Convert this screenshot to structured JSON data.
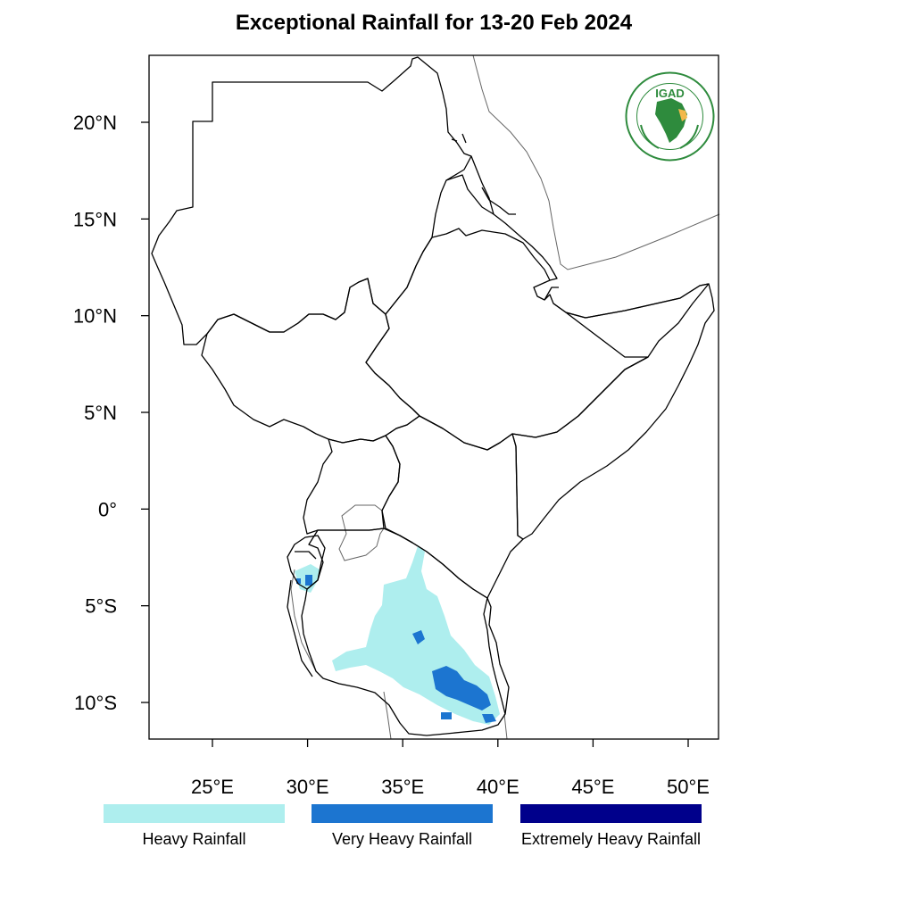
{
  "title": "Exceptional Rainfall for 13-20 Feb 2024",
  "axes": {
    "lat_ticks": [
      {
        "value": 20,
        "label": "20°N"
      },
      {
        "value": 15,
        "label": "15°N"
      },
      {
        "value": 10,
        "label": "10°N"
      },
      {
        "value": 5,
        "label": "5°N"
      },
      {
        "value": 0,
        "label": "0°"
      },
      {
        "value": -5,
        "label": "5°S"
      },
      {
        "value": -10,
        "label": "10°S"
      }
    ],
    "lon_ticks": [
      {
        "value": 25,
        "label": "25°E"
      },
      {
        "value": 30,
        "label": "30°E"
      },
      {
        "value": 35,
        "label": "35°E"
      },
      {
        "value": 40,
        "label": "40°E"
      },
      {
        "value": 45,
        "label": "45°E"
      },
      {
        "value": 50,
        "label": "50°E"
      }
    ]
  },
  "legend": [
    {
      "label": "Heavy Rainfall",
      "color": "#aeeeee"
    },
    {
      "label": "Very Heavy Rainfall",
      "color": "#1c75d0"
    },
    {
      "label": "Extremely Heavy Rainfall",
      "color": "#00008b"
    }
  ],
  "logo": {
    "text": "IGAD",
    "green": "#2e8b3d",
    "accent": "#f2b84b"
  },
  "colors": {
    "border": "#000000",
    "secondary_lines": "#666666"
  }
}
